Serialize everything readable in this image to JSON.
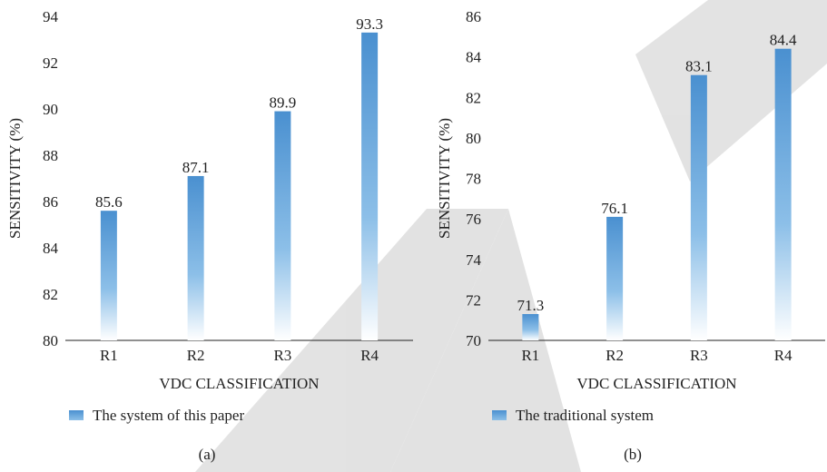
{
  "colors": {
    "bar_top": "#4a90d0",
    "bar_mid": "#8cbfe8",
    "bar_bottom": "#ffffff",
    "axis": "#222222",
    "watermark": "#c8c8c8"
  },
  "chart_data": [
    {
      "type": "bar",
      "categories": [
        "R1",
        "R2",
        "R3",
        "R4"
      ],
      "values": [
        85.6,
        87.1,
        89.9,
        93.3
      ],
      "series": [
        {
          "name": "The system of this paper",
          "values": [
            85.6,
            87.1,
            89.9,
            93.3
          ]
        }
      ],
      "xlabel": "VDC CLASSIFICATION",
      "ylabel": "SENSITIVITY (%)",
      "ylim": [
        80,
        94
      ],
      "yticks": [
        80,
        82,
        84,
        86,
        88,
        90,
        92,
        94
      ],
      "grid": false,
      "legend": "bottom-left",
      "panel_label": "(a)"
    },
    {
      "type": "bar",
      "categories": [
        "R1",
        "R2",
        "R3",
        "R4"
      ],
      "values": [
        71.3,
        76.1,
        83.1,
        84.4
      ],
      "series": [
        {
          "name": "The traditional system",
          "values": [
            71.3,
            76.1,
            83.1,
            84.4
          ]
        }
      ],
      "xlabel": "VDC CLASSIFICATION",
      "ylabel": "SENSITIVITY (%)",
      "ylim": [
        70,
        86
      ],
      "yticks": [
        70,
        72,
        74,
        76,
        78,
        80,
        82,
        84,
        86
      ],
      "grid": false,
      "legend": "bottom-left",
      "panel_label": "(b)"
    }
  ]
}
